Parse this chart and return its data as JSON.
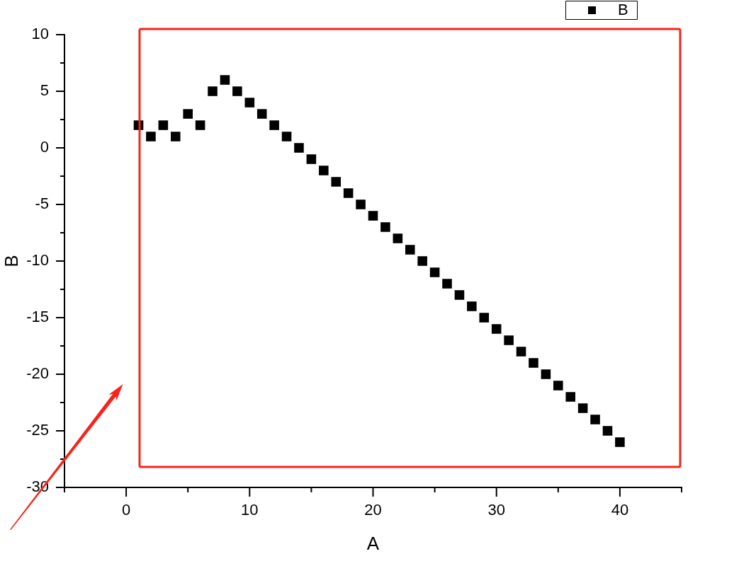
{
  "chart_data": {
    "type": "scatter",
    "xlabel": "A",
    "ylabel": "B",
    "x": [
      1,
      2,
      3,
      4,
      5,
      6,
      7,
      8,
      9,
      10,
      11,
      12,
      13,
      14,
      15,
      16,
      17,
      18,
      19,
      20,
      21,
      22,
      23,
      24,
      25,
      26,
      27,
      28,
      29,
      30,
      31,
      32,
      33,
      34,
      35,
      36,
      37,
      38,
      39,
      40
    ],
    "series": [
      {
        "name": "B",
        "color": "#000000",
        "values": [
          2,
          1,
          2,
          1,
          3,
          2,
          5,
          6,
          5,
          4,
          3,
          2,
          1,
          0,
          -1,
          -2,
          -3,
          -4,
          -5,
          -6,
          -7,
          -8,
          -9,
          -10,
          -11,
          -12,
          -13,
          -14,
          -15,
          -16,
          -17,
          -18,
          -19,
          -20,
          -21,
          -22,
          -23,
          -24,
          -25,
          -26
        ]
      }
    ],
    "xlim": [
      -5,
      45
    ],
    "xticks": [
      {
        "value": -5,
        "label": null
      },
      0,
      {
        "value": 5,
        "label": null
      },
      10,
      {
        "value": 15,
        "label": null
      },
      20,
      {
        "value": 25,
        "label": null
      },
      30,
      {
        "value": 35,
        "label": null
      },
      40,
      {
        "value": 45,
        "label": null
      }
    ],
    "ylim": [
      -30,
      10
    ],
    "yticks": [
      -30,
      {
        "value": -27.5,
        "label": null
      },
      -25,
      {
        "value": -22.5,
        "label": null
      },
      -20,
      {
        "value": -17.5,
        "label": null
      },
      -15,
      {
        "value": -12.5,
        "label": null
      },
      -10,
      {
        "value": -7.5,
        "label": null
      },
      -5,
      {
        "value": -2.5,
        "label": null
      },
      0,
      {
        "value": 2.5,
        "label": null
      },
      5,
      {
        "value": 7.5,
        "label": null
      },
      10
    ],
    "legend": "top right",
    "marker": "square",
    "grid": false
  }
}
